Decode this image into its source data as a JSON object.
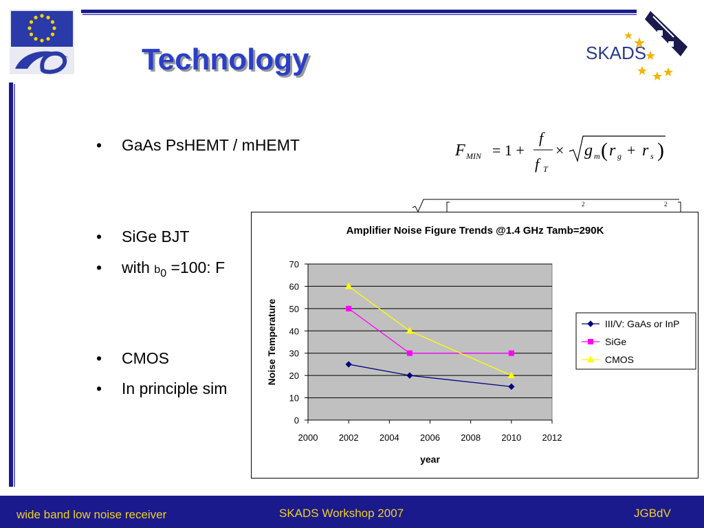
{
  "slide": {
    "title": "Technology",
    "bullets": [
      {
        "text": "GaAs PsHEMT / mHEMT"
      },
      {
        "text": "SiGe BJT"
      },
      {
        "prefix": "with ",
        "beta_symbol": "b",
        "beta_sub": "0",
        "suffix": " =100:  F"
      },
      {
        "text": "CMOS"
      },
      {
        "text": "In principle sim"
      }
    ],
    "bullet_char": "•"
  },
  "formula": {
    "lhs": "F",
    "lhs_sub": "MIN",
    "eq": "= 1 +",
    "num": "f",
    "den": "f",
    "den_sub": "T",
    "times": "×",
    "g": "g",
    "g_sub": "m",
    "r1": "r",
    "r1_sub": "g",
    "plus": "+",
    "r2": "r",
    "r2_sub": "s"
  },
  "footer": {
    "left": "wide band low noise receiver",
    "center": "SKADS Workshop 2007",
    "right": "JGBdV"
  },
  "logos": {
    "skads_text": "SKADS",
    "eu_logo": "eu-fp6-logo"
  },
  "colors": {
    "slide_blue": "#1a1a8c",
    "title_blue": "#2a3fc8",
    "footer_text": "#f0d020",
    "plot_bg": "#c0c0c0"
  },
  "chart_data": {
    "type": "line",
    "title": "Amplifier Noise Figure Trends @1.4 GHz Tamb=290K",
    "xlabel": "year",
    "ylabel": "Noise Temperature",
    "xlim": [
      2000,
      2012
    ],
    "ylim": [
      0,
      70
    ],
    "xticks": [
      "2000",
      "2002",
      "2004",
      "2006",
      "2008",
      "2010",
      "2012"
    ],
    "yticks": [
      "0",
      "10",
      "20",
      "30",
      "40",
      "50",
      "60",
      "70"
    ],
    "grid": "horizontal",
    "legend_position": "right",
    "series": [
      {
        "name": "III/V: GaAs or InP",
        "color": "#00007f",
        "marker": "diamond",
        "x": [
          2002,
          2005,
          2010
        ],
        "y": [
          25,
          20,
          15
        ]
      },
      {
        "name": "SiGe",
        "color": "#ff00ff",
        "marker": "square",
        "x": [
          2002,
          2005,
          2010
        ],
        "y": [
          50,
          30,
          30
        ]
      },
      {
        "name": "CMOS",
        "color": "#ffff00",
        "marker": "triangle",
        "x": [
          2002,
          2005,
          2010
        ],
        "y": [
          60,
          40,
          20
        ]
      }
    ]
  }
}
